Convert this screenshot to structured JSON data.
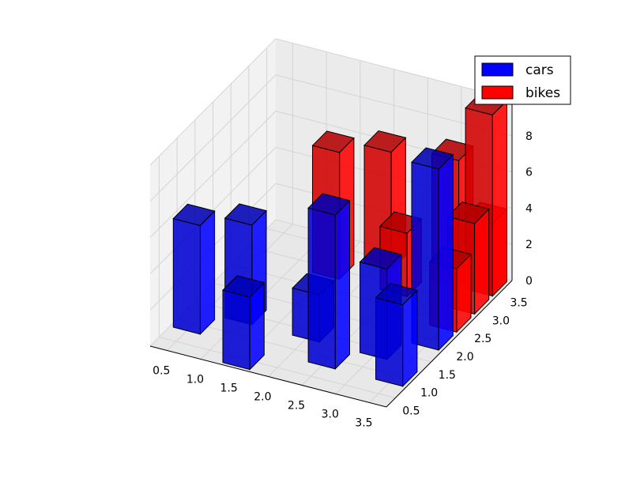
{
  "chart_data": {
    "type": "bar",
    "projection": "3d",
    "legend": {
      "placement": "top-right",
      "entries": [
        "cars",
        "bikes"
      ]
    },
    "grid": true,
    "x_ticks": [
      "0.5",
      "1.0",
      "1.5",
      "2.0",
      "2.5",
      "3.0",
      "3.5"
    ],
    "y_ticks": [
      "0.5",
      "1.0",
      "1.5",
      "2.0",
      "2.5",
      "3.0",
      "3.5"
    ],
    "z_ticks": [
      "0",
      "2",
      "4",
      "6",
      "8",
      "10"
    ],
    "xlim": [
      0.25,
      3.75
    ],
    "ylim": [
      0.25,
      3.75
    ],
    "zlim": [
      0,
      10
    ],
    "series": [
      {
        "name": "cars",
        "color": "#0000ff",
        "bars": [
          {
            "x": 0.5,
            "y": 1.0,
            "value": 6
          },
          {
            "x": 1.0,
            "y": 1.5,
            "value": 5.5
          },
          {
            "x": 1.5,
            "y": 0.5,
            "value": 4
          },
          {
            "x": 2.0,
            "y": 1.5,
            "value": 2.6
          },
          {
            "x": 2.5,
            "y": 1.0,
            "value": 8.5
          },
          {
            "x": 3.0,
            "y": 1.5,
            "value": 5
          },
          {
            "x": 3.5,
            "y": 1.0,
            "value": 4.5
          },
          {
            "x": 3.5,
            "y": 2.0,
            "value": 10
          }
        ]
      },
      {
        "name": "bikes",
        "color": "#ff0000",
        "bars": [
          {
            "x": 1.5,
            "y": 3.0,
            "value": 7
          },
          {
            "x": 2.0,
            "y": 3.5,
            "value": 6.5
          },
          {
            "x": 2.5,
            "y": 3.0,
            "value": 3.5
          },
          {
            "x": 3.0,
            "y": 3.5,
            "value": 7
          },
          {
            "x": 3.5,
            "y": 3.0,
            "value": 5
          },
          {
            "x": 3.5,
            "y": 3.5,
            "value": 4
          },
          {
            "x": 3.5,
            "y": 2.5,
            "value": 3.5
          },
          {
            "x": 3.5,
            "y": 3.5,
            "value": 10
          }
        ]
      }
    ]
  }
}
